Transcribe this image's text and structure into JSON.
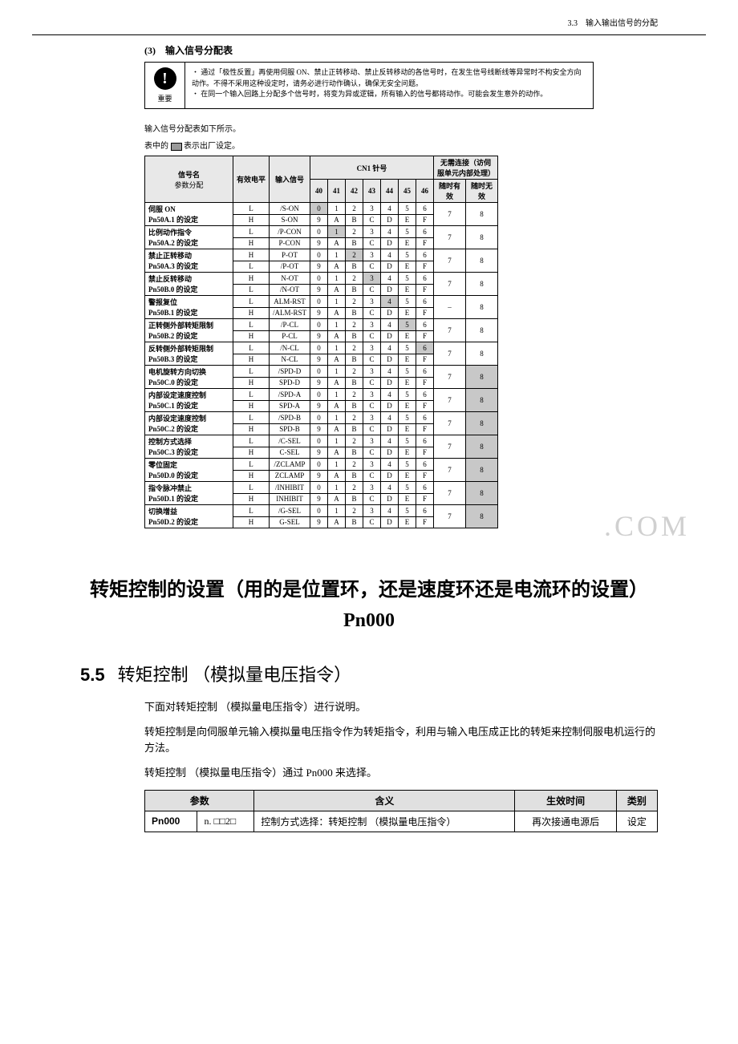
{
  "headerRight": "3.3　输入输出信号的分配",
  "sectionNumber": "(3)　输入信号分配表",
  "notice": {
    "label": "重要",
    "lines": [
      "・ 通过「极性反置」再使用伺服 ON、禁止正转移动、禁止反转移动的各信号时，在发生信号线断线等异常时不构安全方向动作。不得不采用这种设定时，请务必进行动作确认，确保无安全问题。",
      "・ 在同一个输入回路上分配多个信号时，将变为异或逻辑，所有输入的信号都将动作。可能会发生意外的动作。"
    ]
  },
  "tableNote1": "输入信号分配表如下所示。",
  "tableNote2a": "表中的",
  "tableNote2b": "表示出厂设定。",
  "sigTable": {
    "headers": {
      "name": "信号名",
      "paramAlloc": "参数分配",
      "level": "有效电平",
      "inputSig": "输入信号",
      "pinGroup": "CN1 针号",
      "pins": [
        "40",
        "41",
        "42",
        "43",
        "44",
        "45",
        "46"
      ],
      "noConn": "无需连接（访伺服单元内部处理）",
      "alwaysValid": "随时有效",
      "alwaysInvalid": "随时无效"
    },
    "rows": [
      {
        "label": "伺服 ON",
        "param": "Pn50A.1 的设定",
        "l1": "L",
        "sig1": "/S-ON",
        "v1": [
          "0",
          "1",
          "2",
          "3",
          "4",
          "5",
          "6"
        ],
        "l2": "H",
        "sig2": "S-ON",
        "v2": [
          "9",
          "A",
          "B",
          "C",
          "D",
          "E",
          "F"
        ],
        "valid": "7",
        "invalid": "8",
        "shade": [
          0
        ]
      },
      {
        "label": "比例动作指令",
        "param": "Pn50A.2 的设定",
        "l1": "L",
        "sig1": "/P-CON",
        "v1": [
          "0",
          "1",
          "2",
          "3",
          "4",
          "5",
          "6"
        ],
        "l2": "H",
        "sig2": "P-CON",
        "v2": [
          "9",
          "A",
          "B",
          "C",
          "D",
          "E",
          "F"
        ],
        "valid": "7",
        "invalid": "8",
        "shade": [
          1
        ]
      },
      {
        "label": "禁止正转移动",
        "param": "Pn50A.3 的设定",
        "l1": "H",
        "sig1": "P-OT",
        "v1": [
          "0",
          "1",
          "2",
          "3",
          "4",
          "5",
          "6"
        ],
        "l2": "L",
        "sig2": "/P-OT",
        "v2": [
          "9",
          "A",
          "B",
          "C",
          "D",
          "E",
          "F"
        ],
        "valid": "7",
        "invalid": "8",
        "shade": [
          2
        ]
      },
      {
        "label": "禁止反转移动",
        "param": "Pn50B.0 的设定",
        "l1": "H",
        "sig1": "N-OT",
        "v1": [
          "0",
          "1",
          "2",
          "3",
          "4",
          "5",
          "6"
        ],
        "l2": "L",
        "sig2": "/N-OT",
        "v2": [
          "9",
          "A",
          "B",
          "C",
          "D",
          "E",
          "F"
        ],
        "valid": "7",
        "invalid": "8",
        "shade": [
          3
        ]
      },
      {
        "label": "警报复位",
        "param": "Pn50B.1 的设定",
        "l1": "L",
        "sig1": "ALM-RST",
        "v1": [
          "0",
          "1",
          "2",
          "3",
          "4",
          "5",
          "6"
        ],
        "l2": "H",
        "sig2": "/ALM-RST",
        "v2": [
          "9",
          "A",
          "B",
          "C",
          "D",
          "E",
          "F"
        ],
        "valid": "–",
        "invalid": "8",
        "shade": [
          4
        ]
      },
      {
        "label": "正转侧外部转矩限制",
        "param": "Pn50B.2 的设定",
        "l1": "L",
        "sig1": "/P-CL",
        "v1": [
          "0",
          "1",
          "2",
          "3",
          "4",
          "5",
          "6"
        ],
        "l2": "H",
        "sig2": "P-CL",
        "v2": [
          "9",
          "A",
          "B",
          "C",
          "D",
          "E",
          "F"
        ],
        "valid": "7",
        "invalid": "8",
        "shade": [
          5
        ]
      },
      {
        "label": "反转侧外部转矩限制",
        "param": "Pn50B.3 的设定",
        "l1": "L",
        "sig1": "/N-CL",
        "v1": [
          "0",
          "1",
          "2",
          "3",
          "4",
          "5",
          "6"
        ],
        "l2": "H",
        "sig2": "N-CL",
        "v2": [
          "9",
          "A",
          "B",
          "C",
          "D",
          "E",
          "F"
        ],
        "valid": "7",
        "invalid": "8",
        "shade": [
          6
        ]
      },
      {
        "label": "电机旋转方向切换",
        "param": "Pn50C.0 的设定",
        "l1": "L",
        "sig1": "/SPD-D",
        "v1": [
          "0",
          "1",
          "2",
          "3",
          "4",
          "5",
          "6"
        ],
        "l2": "H",
        "sig2": "SPD-D",
        "v2": [
          "9",
          "A",
          "B",
          "C",
          "D",
          "E",
          "F"
        ],
        "valid": "7",
        "invalid": "8",
        "shade": null
      },
      {
        "label": "内部设定速度控制",
        "param": "Pn50C.1 的设定",
        "l1": "L",
        "sig1": "/SPD-A",
        "v1": [
          "0",
          "1",
          "2",
          "3",
          "4",
          "5",
          "6"
        ],
        "l2": "H",
        "sig2": "SPD-A",
        "v2": [
          "9",
          "A",
          "B",
          "C",
          "D",
          "E",
          "F"
        ],
        "valid": "7",
        "invalid": "8",
        "shade": null
      },
      {
        "label": "内部设定速度控制",
        "param": "Pn50C.2 的设定",
        "l1": "L",
        "sig1": "/SPD-B",
        "v1": [
          "0",
          "1",
          "2",
          "3",
          "4",
          "5",
          "6"
        ],
        "l2": "H",
        "sig2": "SPD-B",
        "v2": [
          "9",
          "A",
          "B",
          "C",
          "D",
          "E",
          "F"
        ],
        "valid": "7",
        "invalid": "8",
        "shade": null
      },
      {
        "label": "控制方式选择",
        "param": "Pn50C.3 的设定",
        "l1": "L",
        "sig1": "/C-SEL",
        "v1": [
          "0",
          "1",
          "2",
          "3",
          "4",
          "5",
          "6"
        ],
        "l2": "H",
        "sig2": "C-SEL",
        "v2": [
          "9",
          "A",
          "B",
          "C",
          "D",
          "E",
          "F"
        ],
        "valid": "7",
        "invalid": "8",
        "shade": null
      },
      {
        "label": "零位固定",
        "param": "Pn50D.0 的设定",
        "l1": "L",
        "sig1": "/ZCLAMP",
        "v1": [
          "0",
          "1",
          "2",
          "3",
          "4",
          "5",
          "6"
        ],
        "l2": "H",
        "sig2": "ZCLAMP",
        "v2": [
          "9",
          "A",
          "B",
          "C",
          "D",
          "E",
          "F"
        ],
        "valid": "7",
        "invalid": "8",
        "shade": null
      },
      {
        "label": "指令脉冲禁止",
        "param": "Pn50D.1 的设定",
        "l1": "L",
        "sig1": "/INHIBIT",
        "v1": [
          "0",
          "1",
          "2",
          "3",
          "4",
          "5",
          "6"
        ],
        "l2": "H",
        "sig2": "INHIBIT",
        "v2": [
          "9",
          "A",
          "B",
          "C",
          "D",
          "E",
          "F"
        ],
        "valid": "7",
        "invalid": "8",
        "shade": null
      },
      {
        "label": "切换增益",
        "param": "Pn50D.2 的设定",
        "l1": "L",
        "sig1": "/G-SEL",
        "v1": [
          "0",
          "1",
          "2",
          "3",
          "4",
          "5",
          "6"
        ],
        "l2": "H",
        "sig2": "G-SEL",
        "v2": [
          "9",
          "A",
          "B",
          "C",
          "D",
          "E",
          "F"
        ],
        "valid": "7",
        "invalid": "8",
        "shade": null
      }
    ]
  },
  "watermark": ".COM",
  "bigHeadingA": "转矩控制的设置（用的是位置环，还是速度环还是电流环的设置）",
  "bigHeadingB": "Pn000",
  "sec55Num": "5.5",
  "sec55Title": "转矩控制 （模拟量电压指令）",
  "body1": "下面对转矩控制 （模拟量电压指令）进行说明。",
  "body2": "转矩控制是向伺服单元输入模拟量电压指令作为转矩指令，利用与输入电压成正比的转矩来控制伺服电机运行的方法。",
  "body3": "转矩控制 （模拟量电压指令）通过 Pn000 来选择。",
  "paramTable": {
    "headers": [
      "参数",
      "含义",
      "生效时间",
      "类别"
    ],
    "row": {
      "name": "Pn000",
      "val": "n. □□2□",
      "meaning": "控制方式选择：转矩控制 （模拟量电压指令）",
      "timing": "再次接通电源后",
      "category": "设定"
    }
  }
}
